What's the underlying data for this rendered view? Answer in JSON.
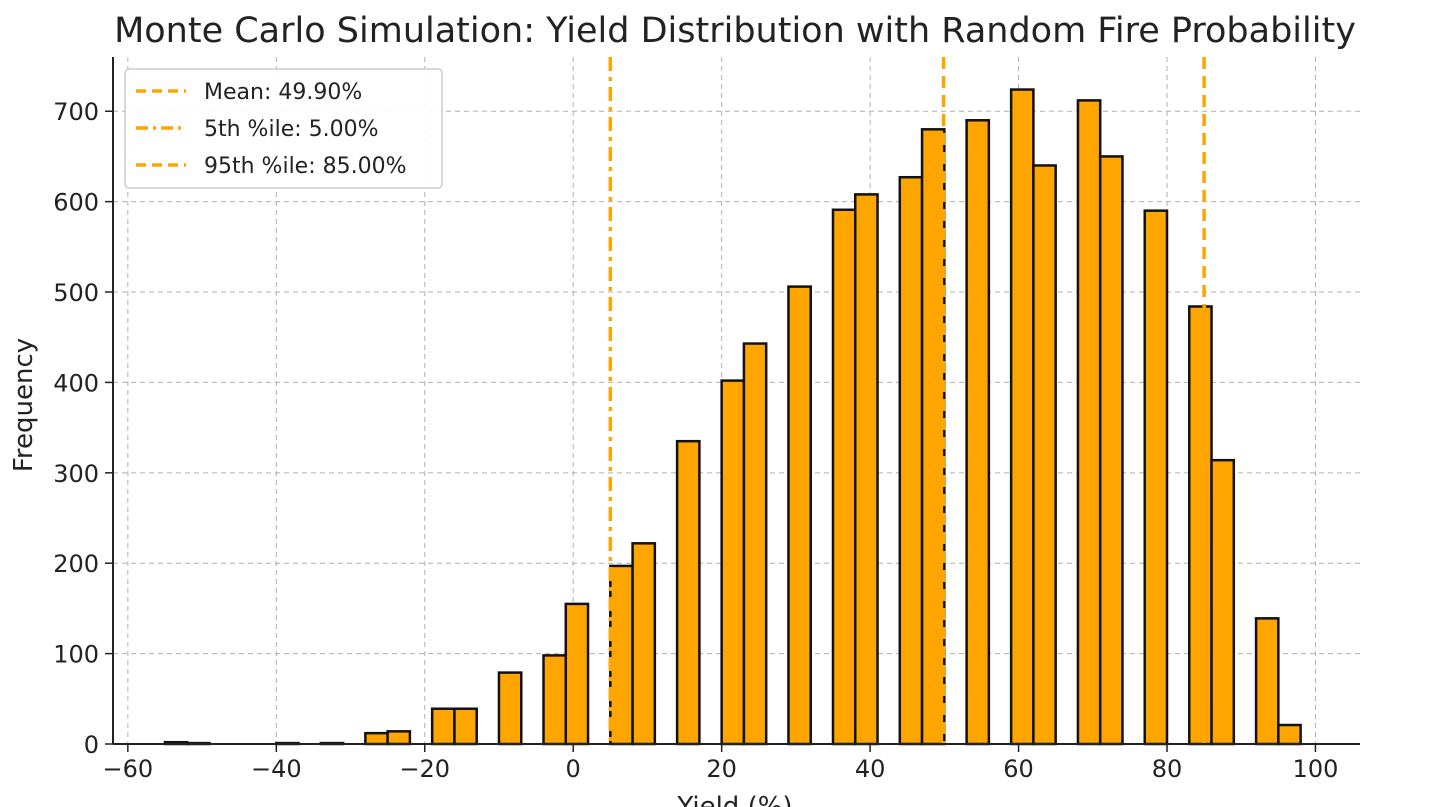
{
  "chart_data": {
    "type": "bar",
    "title": "Monte Carlo Simulation: Yield Distribution with Random Fire Probability",
    "xlabel": "Yield (%)",
    "ylabel": "Frequency",
    "xlim": [
      -62,
      106
    ],
    "ylim": [
      0,
      760
    ],
    "xticks": [
      -60,
      -40,
      -20,
      0,
      20,
      40,
      60,
      80,
      100
    ],
    "xtick_labels": [
      "−60",
      "−40",
      "−20",
      "0",
      "20",
      "40",
      "60",
      "80",
      "100"
    ],
    "yticks": [
      0,
      100,
      200,
      300,
      400,
      500,
      600,
      700
    ],
    "yticks_labels": [
      "0",
      "100",
      "200",
      "300",
      "400",
      "500",
      "600",
      "700"
    ],
    "grid": true,
    "legend_position": "top-left",
    "bar_color": "#ffa500",
    "bin_edges": [
      -55,
      -52,
      -49,
      -46,
      -43,
      -40,
      -37,
      -34,
      -31,
      -28,
      -25,
      -22,
      -19,
      -16,
      -13,
      -10,
      -7,
      -4,
      -1,
      2,
      5,
      8,
      11,
      14,
      17,
      20,
      23,
      26,
      29,
      32,
      35,
      38,
      41,
      44,
      47,
      50,
      53,
      56,
      59,
      62,
      65,
      68,
      71,
      74,
      77,
      80,
      83,
      86,
      89,
      92,
      95,
      98,
      101
    ],
    "counts": [
      2,
      1,
      0,
      0,
      0,
      1,
      0,
      1,
      0,
      12,
      14,
      0,
      39,
      39,
      0,
      79,
      0,
      98,
      155,
      0,
      197,
      222,
      0,
      335,
      0,
      402,
      443,
      0,
      506,
      0,
      591,
      608,
      0,
      627,
      680,
      0,
      690,
      0,
      724,
      640,
      0,
      712,
      650,
      0,
      590,
      0,
      484,
      314,
      0,
      139,
      21,
      0
    ],
    "reference_lines": [
      {
        "label": "Mean: 49.90%",
        "value": 49.9,
        "style": "dashed",
        "color": "#ffa500"
      },
      {
        "label": "5th %ile: 5.00%",
        "value": 5.0,
        "style": "dashdot",
        "color": "#ffa500"
      },
      {
        "label": "95th %ile: 85.00%",
        "value": 85.0,
        "style": "dashed",
        "color": "#ffa500"
      }
    ]
  }
}
